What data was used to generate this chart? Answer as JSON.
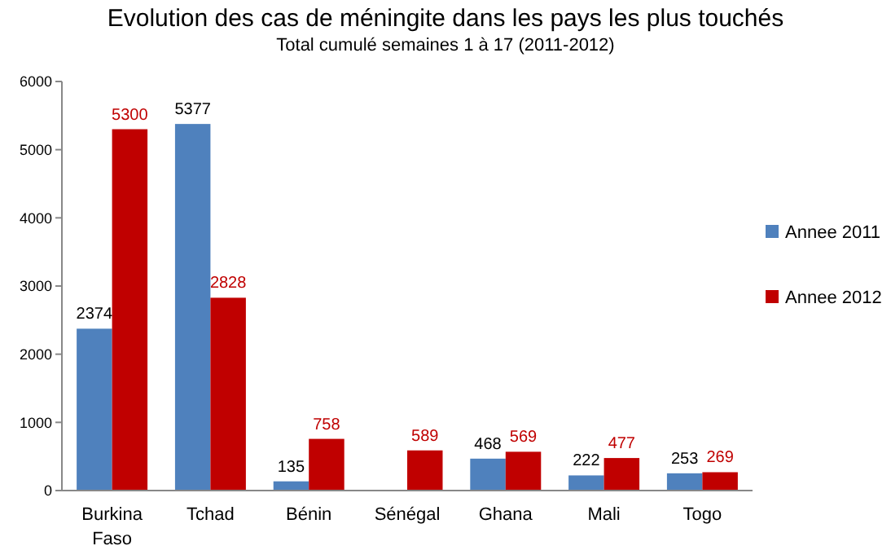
{
  "chart_data": {
    "type": "bar",
    "title": "Evolution des cas de méningite dans les pays les plus touchés",
    "subtitle": "Total cumulé semaines 1 à 17 (2011-2012)",
    "categories": [
      "Burkina Faso",
      "Tchad",
      "Bénin",
      "Sénégal",
      "Ghana",
      "Mali",
      "Togo"
    ],
    "series": [
      {
        "name": "Annee 2011",
        "color": "#4f81bd",
        "values": [
          2374,
          5377,
          135,
          null,
          468,
          222,
          253
        ]
      },
      {
        "name": "Annee 2012",
        "color": "#c00000",
        "values": [
          5300,
          2828,
          758,
          589,
          569,
          477,
          269
        ]
      }
    ],
    "ylim": [
      0,
      6000
    ],
    "yticks": [
      0,
      1000,
      2000,
      3000,
      4000,
      5000,
      6000
    ],
    "grid": false,
    "legend": "right",
    "data_labels": true
  }
}
